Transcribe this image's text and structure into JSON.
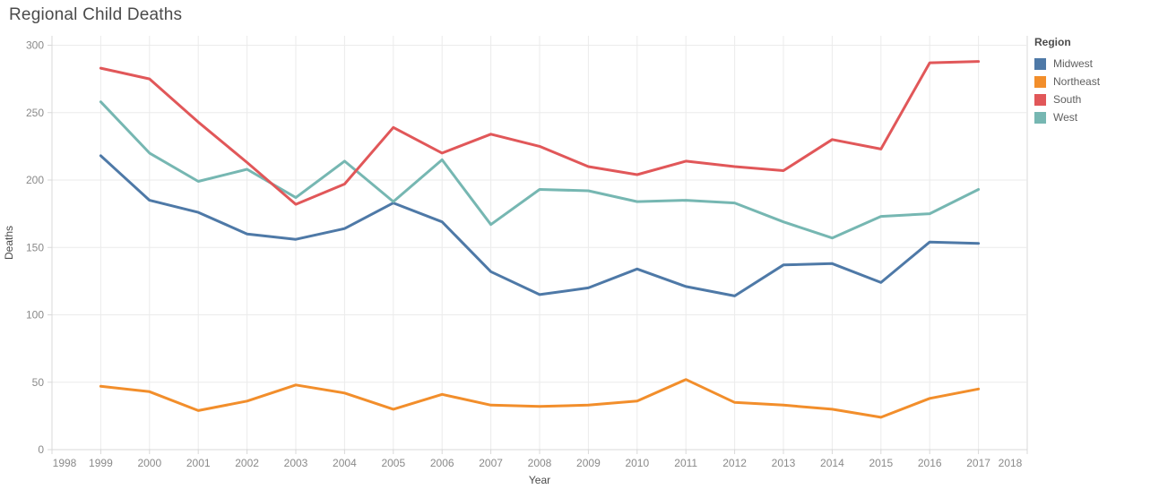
{
  "title": "Regional Child Deaths",
  "axes": {
    "x_title": "Year",
    "y_title": "Deaths"
  },
  "legend": {
    "title": "Region",
    "items": [
      {
        "label": "Midwest",
        "color": "#4e79a7"
      },
      {
        "label": "Northeast",
        "color": "#f28e2b"
      },
      {
        "label": "South",
        "color": "#e15759"
      },
      {
        "label": "West",
        "color": "#76b7b2"
      }
    ]
  },
  "style": {
    "gridline_color": "#ebebeb",
    "axis_line_color": "#d8d8d8",
    "tick_label_color": "#8a8a8a",
    "axis_title_color": "#4b4b4b",
    "line_width": 3
  },
  "chart_data": {
    "type": "line",
    "title": "Regional Child Deaths",
    "xlabel": "Year",
    "ylabel": "Deaths",
    "x": [
      1999,
      2000,
      2001,
      2002,
      2003,
      2004,
      2005,
      2006,
      2007,
      2008,
      2009,
      2010,
      2011,
      2012,
      2013,
      2014,
      2015,
      2016,
      2017
    ],
    "series": [
      {
        "name": "Midwest",
        "color": "#4e79a7",
        "values": [
          218,
          185,
          176,
          160,
          156,
          164,
          183,
          169,
          132,
          115,
          120,
          134,
          121,
          114,
          137,
          138,
          124,
          154,
          153
        ]
      },
      {
        "name": "Northeast",
        "color": "#f28e2b",
        "values": [
          47,
          43,
          29,
          36,
          48,
          42,
          30,
          41,
          33,
          32,
          33,
          36,
          52,
          35,
          33,
          30,
          24,
          38,
          45
        ]
      },
      {
        "name": "South",
        "color": "#e15759",
        "values": [
          283,
          275,
          243,
          213,
          182,
          197,
          239,
          220,
          234,
          225,
          210,
          204,
          214,
          210,
          207,
          230,
          223,
          287,
          288
        ]
      },
      {
        "name": "West",
        "color": "#76b7b2",
        "values": [
          258,
          220,
          199,
          208,
          187,
          214,
          184,
          215,
          167,
          193,
          192,
          184,
          185,
          183,
          169,
          157,
          173,
          175,
          193
        ]
      }
    ],
    "x_ticks": [
      1998,
      1999,
      2000,
      2001,
      2002,
      2003,
      2004,
      2005,
      2006,
      2007,
      2008,
      2009,
      2010,
      2011,
      2012,
      2013,
      2014,
      2015,
      2016,
      2017,
      2018
    ],
    "y_ticks": [
      0,
      50,
      100,
      150,
      200,
      250,
      300
    ],
    "xlim": [
      1998,
      2018
    ],
    "ylim": [
      0,
      300
    ],
    "grid": true,
    "legend_position": "right"
  }
}
